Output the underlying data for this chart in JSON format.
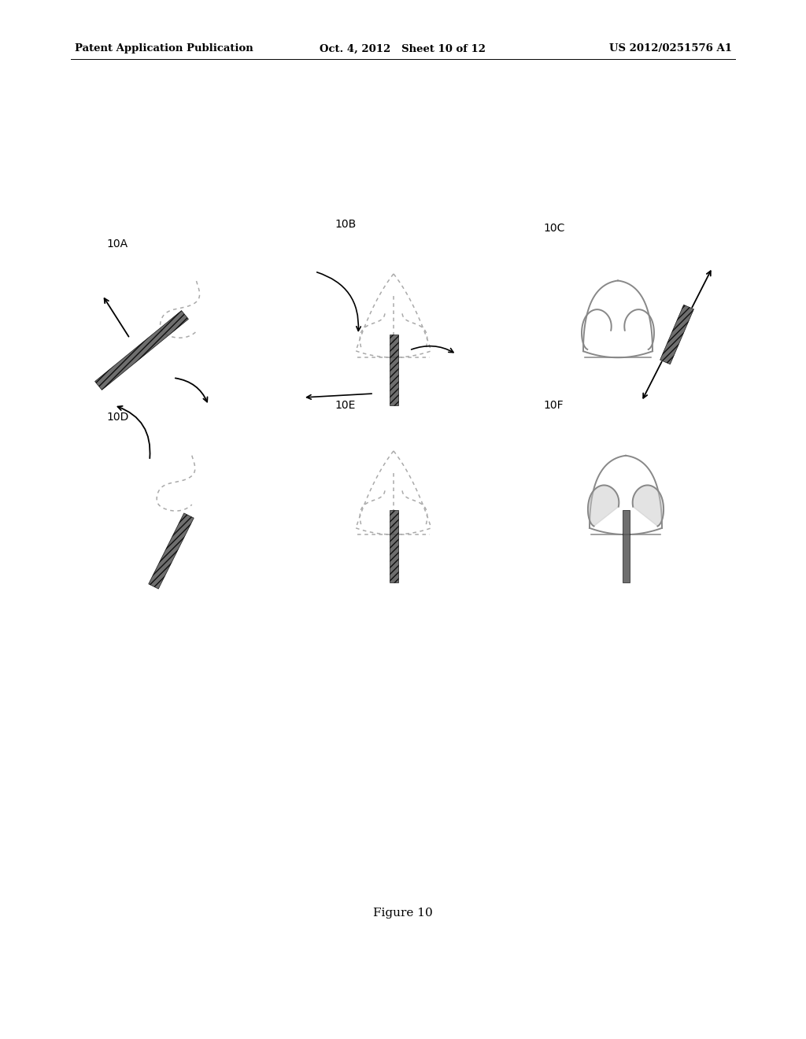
{
  "title_left": "Patent Application Publication",
  "title_center": "Oct. 4, 2012   Sheet 10 of 12",
  "title_right": "US 2012/0251576 A1",
  "figure_label": "Figure 10",
  "background_color": "#ffffff",
  "panel_labels": [
    "10A",
    "10B",
    "10C",
    "10D",
    "10E",
    "10F"
  ],
  "header_fontsize": 9,
  "label_fontsize": 10,
  "fig_label_fontsize": 11,
  "dot_color": "#aaaaaa",
  "dark_color": "#555555",
  "mid_gray": "#888888",
  "light_gray": "#c8c8c8",
  "line_color": "#999999"
}
